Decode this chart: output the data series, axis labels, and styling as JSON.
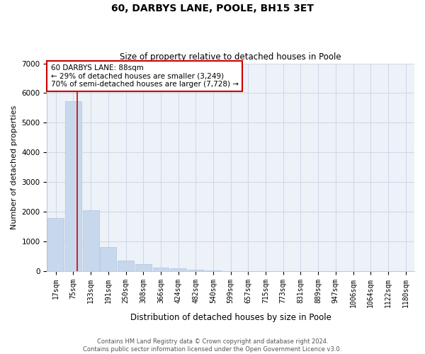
{
  "title": "60, DARBYS LANE, POOLE, BH15 3ET",
  "subtitle": "Size of property relative to detached houses in Poole",
  "xlabel": "Distribution of detached houses by size in Poole",
  "ylabel": "Number of detached properties",
  "bar_color": "#c8d8ec",
  "bar_edge_color": "#aec4df",
  "categories": [
    "17sqm",
    "75sqm",
    "133sqm",
    "191sqm",
    "250sqm",
    "308sqm",
    "366sqm",
    "424sqm",
    "482sqm",
    "540sqm",
    "599sqm",
    "657sqm",
    "715sqm",
    "773sqm",
    "831sqm",
    "889sqm",
    "947sqm",
    "1006sqm",
    "1064sqm",
    "1122sqm",
    "1180sqm"
  ],
  "values": [
    1780,
    5730,
    2050,
    800,
    360,
    230,
    120,
    80,
    40,
    15,
    5,
    0,
    0,
    0,
    0,
    0,
    0,
    0,
    0,
    0,
    0
  ],
  "ylim": [
    0,
    7000
  ],
  "yticks": [
    0,
    1000,
    2000,
    3000,
    4000,
    5000,
    6000,
    7000
  ],
  "property_label": "60 DARBYS LANE: 88sqm",
  "annotation_line1": "← 29% of detached houses are smaller (3,249)",
  "annotation_line2": "70% of semi-detached houses are larger (7,728) →",
  "box_facecolor": "#ffffff",
  "box_edgecolor": "#cc0000",
  "vline_color": "#cc0000",
  "footer_line1": "Contains HM Land Registry data © Crown copyright and database right 2024.",
  "footer_line2": "Contains public sector information licensed under the Open Government Licence v3.0.",
  "grid_color": "#cdd8e8",
  "background_color": "#edf1f8",
  "title_fontsize": 10,
  "subtitle_fontsize": 8.5,
  "xlabel_fontsize": 8.5,
  "ylabel_fontsize": 8,
  "tick_fontsize": 7,
  "annotation_fontsize": 7.5,
  "footer_fontsize": 6
}
